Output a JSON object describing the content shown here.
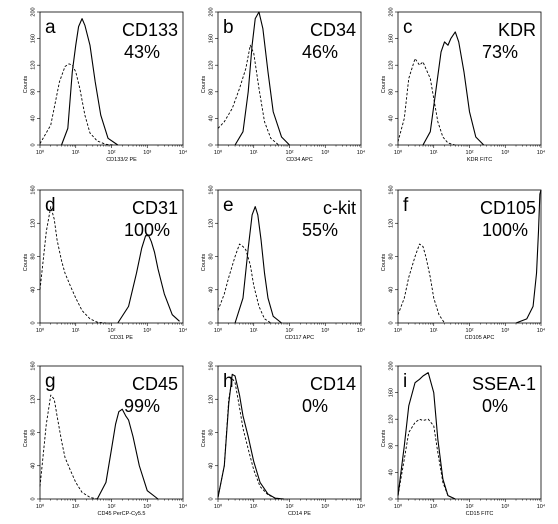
{
  "chart_data": [
    {
      "type": "line",
      "letter": "a",
      "marker": "CD133",
      "percent": "43%",
      "xlabel": "CD133/2 PE",
      "ylabel": "Counts",
      "xscale": "log",
      "xlim": [
        1,
        10000
      ],
      "ylim": [
        0,
        200
      ],
      "x_ticks": [
        "10⁰",
        "10¹",
        "10²",
        "10³",
        "10⁴"
      ],
      "y_ticks": [
        "0",
        "40",
        "80",
        "120",
        "160",
        "200"
      ],
      "series": [
        {
          "style": "dashed",
          "x": [
            1,
            2,
            3.5,
            5,
            6.5,
            8,
            10,
            13,
            18,
            25,
            40,
            70,
            120
          ],
          "y": [
            2,
            30,
            95,
            118,
            122,
            120,
            110,
            85,
            45,
            18,
            6,
            1,
            0
          ]
        },
        {
          "style": "solid",
          "x": [
            4,
            6,
            8,
            10,
            12,
            15,
            18,
            25,
            35,
            50,
            80,
            150
          ],
          "y": [
            0,
            25,
            110,
            150,
            178,
            190,
            180,
            150,
            95,
            45,
            10,
            0
          ]
        }
      ]
    },
    {
      "type": "line",
      "letter": "b",
      "marker": "CD34",
      "percent": "46%",
      "xlabel": "CD34 APC",
      "ylabel": "Counts",
      "xscale": "log",
      "xlim": [
        1,
        10000
      ],
      "ylim": [
        0,
        200
      ],
      "x_ticks": [
        "10⁰",
        "10¹",
        "10²",
        "10³",
        "10⁴"
      ],
      "y_ticks": [
        "0",
        "40",
        "80",
        "120",
        "160",
        "200"
      ],
      "series": [
        {
          "style": "dashed",
          "x": [
            1,
            1.5,
            2.5,
            4,
            6,
            8,
            10,
            14,
            20,
            30,
            50
          ],
          "y": [
            25,
            35,
            55,
            85,
            115,
            150,
            138,
            85,
            35,
            10,
            0
          ]
        },
        {
          "style": "solid",
          "x": [
            3,
            5,
            7,
            9,
            11,
            14,
            18,
            25,
            35,
            60,
            100
          ],
          "y": [
            0,
            20,
            80,
            150,
            190,
            200,
            175,
            110,
            50,
            12,
            0
          ]
        }
      ]
    },
    {
      "type": "line",
      "letter": "c",
      "marker": "KDR",
      "percent": "73%",
      "xlabel": "KDR FITC",
      "ylabel": "Counts",
      "xscale": "log",
      "xlim": [
        1,
        10000
      ],
      "ylim": [
        0,
        200
      ],
      "x_ticks": [
        "10⁰",
        "10¹",
        "10²",
        "10³",
        "10⁴"
      ],
      "y_ticks": [
        "0",
        "40",
        "80",
        "120",
        "160",
        "200"
      ],
      "series": [
        {
          "style": "dashed",
          "x": [
            1,
            1.5,
            2,
            3,
            4,
            5,
            6,
            8,
            10,
            13,
            18,
            25,
            40
          ],
          "y": [
            5,
            40,
            100,
            130,
            120,
            125,
            115,
            100,
            70,
            35,
            12,
            3,
            0
          ]
        },
        {
          "style": "solid",
          "x": [
            5,
            8,
            12,
            16,
            20,
            25,
            30,
            40,
            50,
            70,
            100,
            150,
            250
          ],
          "y": [
            0,
            20,
            90,
            140,
            155,
            150,
            160,
            170,
            155,
            110,
            50,
            12,
            0
          ]
        }
      ]
    },
    {
      "type": "line",
      "letter": "d",
      "marker": "CD31",
      "percent": "100%",
      "xlabel": "CD31 PE",
      "ylabel": "Counts",
      "xscale": "log",
      "xlim": [
        1,
        10000
      ],
      "ylim": [
        0,
        160
      ],
      "x_ticks": [
        "10⁰",
        "10¹",
        "10²",
        "10³",
        "10⁴"
      ],
      "y_ticks": [
        "0",
        "40",
        "80",
        "120",
        "160"
      ],
      "series": [
        {
          "style": "dashed",
          "x": [
            1,
            1.5,
            2,
            2.5,
            3,
            4,
            5,
            7,
            10,
            15,
            25,
            40,
            70
          ],
          "y": [
            40,
            110,
            140,
            125,
            100,
            75,
            60,
            45,
            30,
            15,
            5,
            1,
            0
          ]
        },
        {
          "style": "solid",
          "x": [
            150,
            300,
            500,
            700,
            900,
            1100,
            1300,
            1600,
            2000,
            3000,
            5000,
            8000
          ],
          "y": [
            0,
            20,
            60,
            90,
            105,
            105,
            98,
            85,
            65,
            35,
            10,
            2
          ]
        }
      ]
    },
    {
      "type": "line",
      "letter": "e",
      "marker": "c-kit",
      "percent": "55%",
      "xlabel": "CD117 APC",
      "ylabel": "Counts",
      "xscale": "log",
      "xlim": [
        1,
        10000
      ],
      "ylim": [
        0,
        160
      ],
      "x_ticks": [
        "10⁰",
        "10¹",
        "10²",
        "10³",
        "10⁴"
      ],
      "y_ticks": [
        "0",
        "40",
        "80",
        "120",
        "160"
      ],
      "series": [
        {
          "style": "dashed",
          "x": [
            1,
            1.5,
            2,
            3,
            4,
            5,
            6,
            8,
            10,
            14,
            20,
            30
          ],
          "y": [
            15,
            35,
            55,
            80,
            95,
            92,
            88,
            70,
            45,
            20,
            5,
            0
          ]
        },
        {
          "style": "solid",
          "x": [
            3,
            5,
            7,
            9,
            11,
            13,
            16,
            20,
            25,
            35,
            60
          ],
          "y": [
            0,
            30,
            90,
            130,
            140,
            130,
            100,
            60,
            30,
            8,
            0
          ]
        }
      ]
    },
    {
      "type": "line",
      "letter": "f",
      "marker": "CD105",
      "percent": "100%",
      "xlabel": "CD105 APC",
      "ylabel": "Counts",
      "xscale": "log",
      "xlim": [
        1,
        10000
      ],
      "ylim": [
        0,
        160
      ],
      "x_ticks": [
        "10⁰",
        "10¹",
        "10²",
        "10³",
        "10⁴"
      ],
      "y_ticks": [
        "0",
        "40",
        "80",
        "120",
        "160"
      ],
      "series": [
        {
          "style": "dashed",
          "x": [
            1,
            1.5,
            2,
            3,
            4,
            5,
            6,
            8,
            10,
            14,
            20
          ],
          "y": [
            10,
            30,
            55,
            80,
            95,
            92,
            80,
            55,
            30,
            10,
            0
          ]
        },
        {
          "style": "solid",
          "x": [
            2000,
            4000,
            6000,
            7500,
            8500,
            9300,
            10000
          ],
          "y": [
            0,
            5,
            20,
            60,
            110,
            155,
            160
          ]
        }
      ]
    },
    {
      "type": "line",
      "letter": "g",
      "marker": "CD45",
      "percent": "99%",
      "xlabel": "CD45 PerCP-Cy5.5",
      "ylabel": "Counts",
      "xscale": "log",
      "xlim": [
        1,
        10000
      ],
      "ylim": [
        0,
        160
      ],
      "x_ticks": [
        "10⁰",
        "10¹",
        "10²",
        "10³",
        "10⁴"
      ],
      "y_ticks": [
        "0",
        "40",
        "80",
        "120",
        "160"
      ],
      "series": [
        {
          "style": "dashed",
          "x": [
            1,
            1.5,
            2,
            2.5,
            3,
            4,
            5,
            7,
            10,
            15,
            25,
            40
          ],
          "y": [
            15,
            90,
            125,
            120,
            100,
            70,
            50,
            35,
            20,
            8,
            2,
            0
          ]
        },
        {
          "style": "solid",
          "x": [
            40,
            70,
            100,
            130,
            160,
            200,
            250,
            300,
            400,
            600,
            1000,
            2000
          ],
          "y": [
            0,
            20,
            60,
            90,
            105,
            108,
            100,
            95,
            75,
            40,
            10,
            0
          ]
        }
      ]
    },
    {
      "type": "line",
      "letter": "h",
      "marker": "CD14",
      "percent": "0%",
      "xlabel": "CD14 PE",
      "ylabel": "Counts",
      "xscale": "log",
      "xlim": [
        1,
        10000
      ],
      "ylim": [
        0,
        160
      ],
      "x_ticks": [
        "10⁰",
        "10¹",
        "10²",
        "10³",
        "10⁴"
      ],
      "y_ticks": [
        "0",
        "40",
        "80",
        "120",
        "160"
      ],
      "series": [
        {
          "style": "dashed",
          "x": [
            1,
            1.5,
            2,
            2.5,
            3,
            4,
            5,
            7,
            10,
            15,
            25,
            40,
            70
          ],
          "y": [
            2,
            40,
            120,
            145,
            140,
            110,
            85,
            60,
            35,
            15,
            5,
            1,
            0
          ]
        },
        {
          "style": "solid",
          "x": [
            1,
            1.5,
            2,
            2.5,
            3,
            4,
            5,
            7,
            10,
            15,
            25,
            40,
            70
          ],
          "y": [
            2,
            40,
            115,
            150,
            148,
            125,
            100,
            75,
            45,
            20,
            6,
            1,
            0
          ]
        }
      ]
    },
    {
      "type": "line",
      "letter": "i",
      "marker": "SSEA-1",
      "percent": "0%",
      "xlabel": "CD15 FITC",
      "ylabel": "Counts",
      "xscale": "log",
      "xlim": [
        1,
        10000
      ],
      "ylim": [
        0,
        200
      ],
      "x_ticks": [
        "10⁰",
        "10¹",
        "10²",
        "10³",
        "10⁴"
      ],
      "y_ticks": [
        "0",
        "40",
        "80",
        "120",
        "160",
        "200"
      ],
      "series": [
        {
          "style": "dashed",
          "x": [
            1,
            1.5,
            2,
            3,
            4,
            5,
            7,
            10,
            13,
            18,
            25,
            40
          ],
          "y": [
            5,
            60,
            100,
            115,
            120,
            118,
            120,
            110,
            70,
            25,
            5,
            0
          ]
        },
        {
          "style": "solid",
          "x": [
            1,
            1.5,
            2,
            3,
            4,
            5,
            7,
            10,
            13,
            18,
            25,
            40
          ],
          "y": [
            5,
            80,
            140,
            175,
            180,
            185,
            190,
            160,
            90,
            30,
            5,
            0
          ]
        }
      ]
    }
  ]
}
